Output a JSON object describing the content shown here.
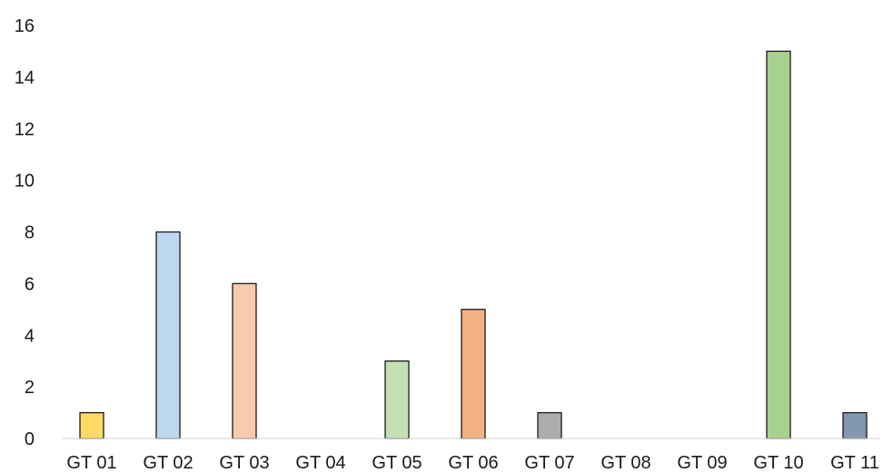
{
  "chart_data": {
    "type": "bar",
    "title": "",
    "xlabel": "",
    "ylabel": "",
    "ylim": [
      0,
      16
    ],
    "y_ticks": [
      "0",
      "2",
      "4",
      "6",
      "8",
      "10",
      "12",
      "14",
      "16"
    ],
    "grid": false,
    "legend": "none",
    "categories": [
      "GT 01",
      "GT 02",
      "GT 03",
      "GT 04",
      "GT 05",
      "GT 06",
      "GT 07",
      "GT 08",
      "GT 09",
      "GT 10",
      "GT 11"
    ],
    "values": [
      1,
      8,
      6,
      0,
      3,
      5,
      1,
      0,
      0,
      15,
      1
    ],
    "colors": [
      "#ffd966",
      "#bdd7ee",
      "#f8cbad",
      "#d9d9d9",
      "#c5e0b4",
      "#f4b183",
      "#aeabab",
      "#d9d9d9",
      "#d9d9d9",
      "#a9d18e",
      "#8497b0"
    ]
  }
}
